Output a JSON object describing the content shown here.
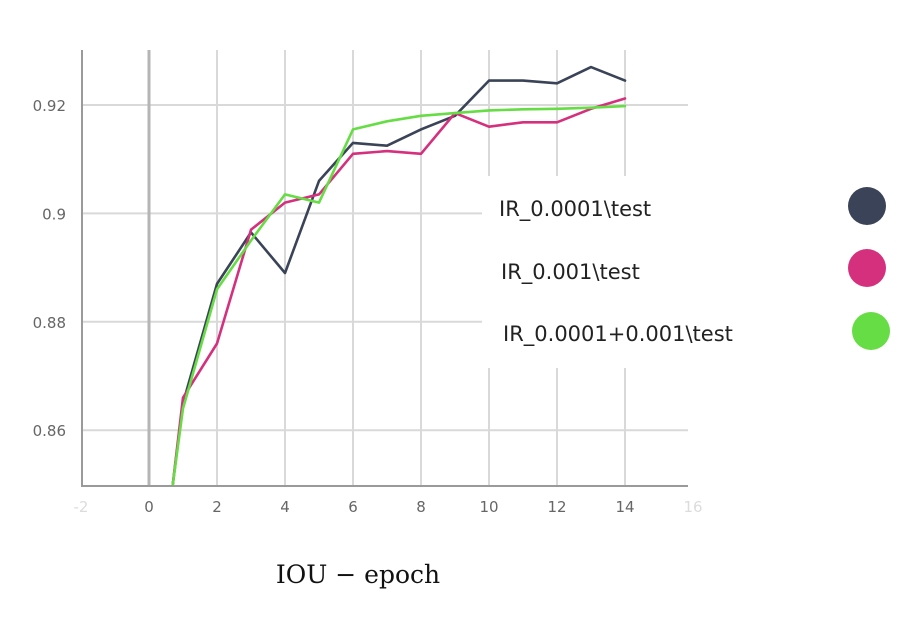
{
  "chart_data": {
    "type": "line",
    "title": "",
    "caption": "IOU − epoch",
    "xlabel": "",
    "ylabel": "",
    "xlim": [
      -2,
      16
    ],
    "ylim": [
      0.85,
      0.925
    ],
    "x_ticks": [
      {
        "value": -2,
        "label": "-2",
        "faded": true
      },
      {
        "value": 0,
        "label": "0",
        "faded": false
      },
      {
        "value": 2,
        "label": "2",
        "faded": false
      },
      {
        "value": 4,
        "label": "4",
        "faded": false
      },
      {
        "value": 6,
        "label": "6",
        "faded": false
      },
      {
        "value": 8,
        "label": "8",
        "faded": false
      },
      {
        "value": 10,
        "label": "10",
        "faded": false
      },
      {
        "value": 12,
        "label": "12",
        "faded": false
      },
      {
        "value": 14,
        "label": "14",
        "faded": false
      },
      {
        "value": 16,
        "label": "16",
        "faded": true
      }
    ],
    "y_ticks": [
      {
        "value": 0.86,
        "label": "0.86"
      },
      {
        "value": 0.88,
        "label": "0.88"
      },
      {
        "value": 0.9,
        "label": "0.9"
      },
      {
        "value": 0.92,
        "label": "0.92"
      }
    ],
    "grid": true,
    "legend_position": "right",
    "series": [
      {
        "name": "IR_0.0001\\test",
        "color": "#3a4357",
        "x": [
          0.7,
          1,
          2,
          3,
          4,
          5,
          6,
          7,
          8,
          9,
          10,
          11,
          12,
          13,
          14
        ],
        "y": [
          0.85,
          0.865,
          0.887,
          0.8965,
          0.889,
          0.906,
          0.913,
          0.9125,
          0.9155,
          0.918,
          0.9245,
          0.9245,
          0.924,
          0.927,
          0.9245
        ]
      },
      {
        "name": "IR_0.001\\test",
        "color": "#d5307e",
        "x": [
          0.7,
          1,
          2,
          3,
          4,
          5,
          6,
          7,
          8,
          9,
          10,
          11,
          12,
          13,
          14
        ],
        "y": [
          0.85,
          0.866,
          0.876,
          0.897,
          0.902,
          0.9035,
          0.911,
          0.9115,
          0.911,
          0.9185,
          0.916,
          0.9168,
          0.9168,
          0.9193,
          0.9212
        ]
      },
      {
        "name": "IR_0.0001+0.001\\test",
        "color": "#66dd44",
        "x": [
          0.7,
          1,
          2,
          3,
          4,
          5,
          6,
          7,
          8,
          9,
          10,
          11,
          12,
          13,
          14
        ],
        "y": [
          0.85,
          0.864,
          0.886,
          0.895,
          0.9035,
          0.902,
          0.9155,
          0.917,
          0.918,
          0.9185,
          0.919,
          0.9192,
          0.9193,
          0.9195,
          0.9198
        ]
      }
    ]
  }
}
